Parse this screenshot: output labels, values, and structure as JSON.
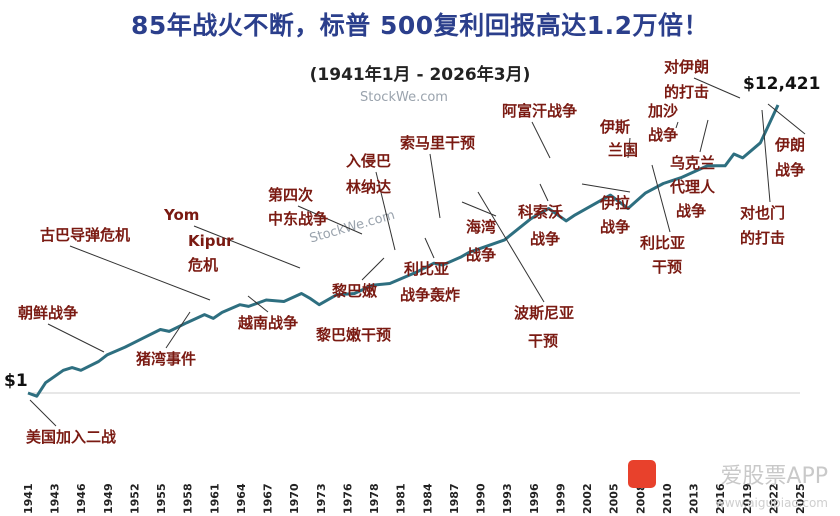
{
  "header": {
    "title": "85年战火不断，标普 500复利回报高达1.2万倍！",
    "subtitle": "(1941年1月 - 2026年3月)"
  },
  "watermarks": [
    "StockWe.com",
    "StockWe.com"
  ],
  "branding": {
    "app_name": "爱股票APP",
    "url": "www.aigupiao.com",
    "logo_color": "#e8412c"
  },
  "chart_data": {
    "type": "line",
    "title": "85年战火不断，标普 500复利回报高达1.2万倍！",
    "subtitle": "(1941年1月 - 2026年3月)",
    "y_scale": "log",
    "start_label": "$1",
    "end_label": "$12,421",
    "line_color": "#2e6f80",
    "annotation_color": "#7a1a12",
    "x_ticks": [
      "1941",
      "1943",
      "1946",
      "1949",
      "1952",
      "1955",
      "1958",
      "1961",
      "1964",
      "1967",
      "1970",
      "1973",
      "1976",
      "1978",
      "1981",
      "1984",
      "1987",
      "1990",
      "1993",
      "1996",
      "1999",
      "2002",
      "2005",
      "2008",
      "2010",
      "2013",
      "2016",
      "2019",
      "2022",
      "2025"
    ],
    "series": [
      {
        "x": [
          1941,
          1942,
          1943,
          1945,
          1946,
          1947,
          1949,
          1950,
          1952,
          1954,
          1956,
          1957,
          1959,
          1961,
          1962,
          1963,
          1965,
          1966,
          1968,
          1970,
          1972,
          1973,
          1974,
          1976,
          1978,
          1980,
          1982,
          1985,
          1987,
          1988,
          1990,
          1991,
          1995,
          1998,
          2000,
          2002,
          2003,
          2007,
          2009,
          2011,
          2013,
          2015,
          2018,
          2020,
          2021,
          2022,
          2024,
          2026
        ],
        "y": [
          1,
          0.9,
          1.4,
          2.1,
          2.3,
          2.1,
          2.8,
          3.5,
          4.5,
          6,
          8,
          7.5,
          10,
          13,
          11.5,
          14,
          18,
          17,
          21,
          20,
          26,
          22,
          18,
          25,
          26,
          34,
          36,
          52,
          70,
          66,
          85,
          100,
          150,
          300,
          420,
          280,
          340,
          650,
          420,
          700,
          950,
          1150,
          1700,
          1700,
          2500,
          2200,
          3600,
          12421
        ]
      }
    ],
    "annotations": [
      {
        "label": "美国加入二战",
        "year": 1942
      },
      {
        "label": "朝鲜战争",
        "year": 1950
      },
      {
        "label": "猪湾事件",
        "year": 1961
      },
      {
        "label": "古巴导弹危机",
        "year": 1962
      },
      {
        "label": "越南战争",
        "year": 1964
      },
      {
        "label": "Yom Kipur 危机",
        "year": 1973
      },
      {
        "label": "第四次 中东战争",
        "year": 1973
      },
      {
        "label": "黎巴嫩 黎巴嫩干预",
        "year": 1982
      },
      {
        "label": "入侵巴 林纳达",
        "year": 1983
      },
      {
        "label": "利比亚 战争轰炸",
        "year": 1986
      },
      {
        "label": "索马里干预",
        "year": 1992
      },
      {
        "label": "海湾 战争",
        "year": 1990
      },
      {
        "label": "波斯尼亚 干预",
        "year": 1995
      },
      {
        "label": "科索沃 战争",
        "year": 1999
      },
      {
        "label": "阿富汗战争",
        "year": 2001
      },
      {
        "label": "伊拉 战争",
        "year": 2003
      },
      {
        "label": "伊斯 兰国",
        "year": 2014
      },
      {
        "label": "利比亚 干预",
        "year": 2011
      },
      {
        "label": "加沙 战争",
        "year": 2023
      },
      {
        "label": "乌克兰 代理人 战争",
        "year": 2022
      },
      {
        "label": "对伊朗 的打击",
        "year": 2025
      },
      {
        "label": "伊朗 战争",
        "year": 2026
      },
      {
        "label": "对也门 的打击",
        "year": 2025
      }
    ]
  }
}
